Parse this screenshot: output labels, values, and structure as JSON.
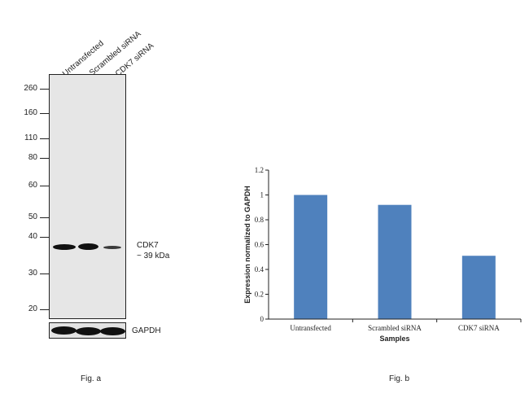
{
  "panel_a": {
    "caption": "Fig. a",
    "lane_labels": [
      "Untransfected",
      "Scrambled siRNA",
      "CDK7 siRNA"
    ],
    "mw_markers": [
      "260",
      "160",
      "110",
      "80",
      "60",
      "50",
      "40",
      "30",
      "20"
    ],
    "target_label": "CDK7",
    "target_size": "~ 39 kDa",
    "loading_control": "GAPDH"
  },
  "panel_b": {
    "caption": "Fig. b"
  },
  "chart_data": {
    "type": "bar",
    "categories": [
      "Untransfected",
      "Scrambled siRNA",
      "CDK7 siRNA"
    ],
    "values": [
      1.0,
      0.92,
      0.51
    ],
    "xlabel": "Samples",
    "ylabel": "Expression normalized to GAPDH",
    "ylim": [
      0,
      1.2
    ],
    "yticks": [
      "0",
      "0.2",
      "0.4",
      "0.6",
      "0.8",
      "1",
      "1.2"
    ],
    "bar_color": "#4f81bd",
    "grid": false
  }
}
